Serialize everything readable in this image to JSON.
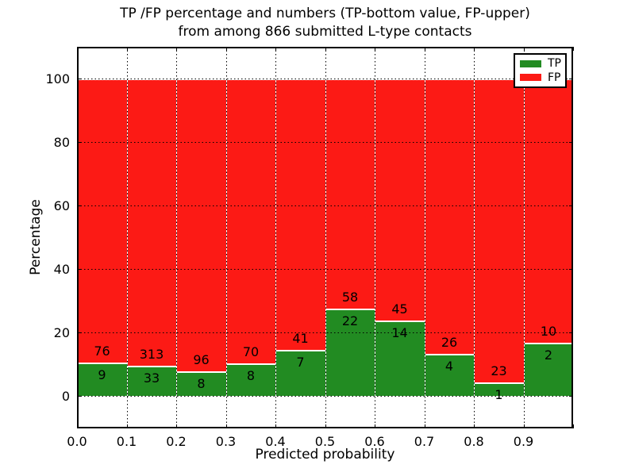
{
  "title": {
    "line1": "TP /FP percentage and numbers (TP-bottom value, FP-upper)",
    "line2": "from among 866 submitted L-type contacts"
  },
  "axes": {
    "ylabel": "Percentage",
    "xlabel": "Predicted probability",
    "ytick_labels": [
      "0",
      "20",
      "40",
      "60",
      "80",
      "100"
    ],
    "xtick_labels": [
      "0.0",
      "0.1",
      "0.2",
      "0.3",
      "0.4",
      "0.5",
      "0.6",
      "0.7",
      "0.8",
      "0.9"
    ]
  },
  "legend": {
    "position": "upper right",
    "items": [
      {
        "label": "TP",
        "color": "#228b22"
      },
      {
        "label": "FP",
        "color": "#fc1a15"
      }
    ]
  },
  "colors": {
    "tp": "#228b22",
    "fp": "#fc1a15",
    "grid": "#000000",
    "background": "#ffffff"
  },
  "chart_data": {
    "type": "bar",
    "stacked": true,
    "normalized": "each bin scaled to 100%",
    "title": "TP /FP percentage and numbers (TP-bottom value, FP-upper) from among 866 submitted L-type contacts",
    "xlabel": "Predicted probability",
    "ylabel": "Percentage",
    "total_contacts": 866,
    "categories": [
      "0.0-0.1",
      "0.1-0.2",
      "0.2-0.3",
      "0.3-0.4",
      "0.4-0.5",
      "0.5-0.6",
      "0.6-0.7",
      "0.7-0.8",
      "0.8-0.9",
      "0.9-1.0"
    ],
    "bin_left_edges": [
      0.0,
      0.1,
      0.2,
      0.3,
      0.4,
      0.5,
      0.6,
      0.7,
      0.8,
      0.9
    ],
    "series": [
      {
        "name": "TP",
        "color": "#228b22",
        "counts": [
          9,
          33,
          8,
          8,
          7,
          22,
          14,
          4,
          1,
          2
        ],
        "percent": [
          10.59,
          9.54,
          7.69,
          10.26,
          14.58,
          27.5,
          23.73,
          13.33,
          4.17,
          16.67
        ]
      },
      {
        "name": "FP",
        "color": "#fc1a15",
        "counts": [
          76,
          313,
          96,
          70,
          41,
          58,
          45,
          26,
          23,
          10
        ],
        "percent": [
          89.41,
          90.46,
          92.31,
          89.74,
          85.42,
          72.5,
          76.27,
          86.67,
          95.83,
          83.33
        ]
      }
    ],
    "ylim": [
      -10,
      110
    ],
    "xlim": [
      0.0,
      1.0
    ],
    "yticks": [
      0,
      20,
      40,
      60,
      80,
      100
    ],
    "xticks": [
      0.0,
      0.1,
      0.2,
      0.3,
      0.4,
      0.5,
      0.6,
      0.7,
      0.8,
      0.9
    ],
    "grid": "dotted, both axes",
    "legend_position": "upper right"
  }
}
